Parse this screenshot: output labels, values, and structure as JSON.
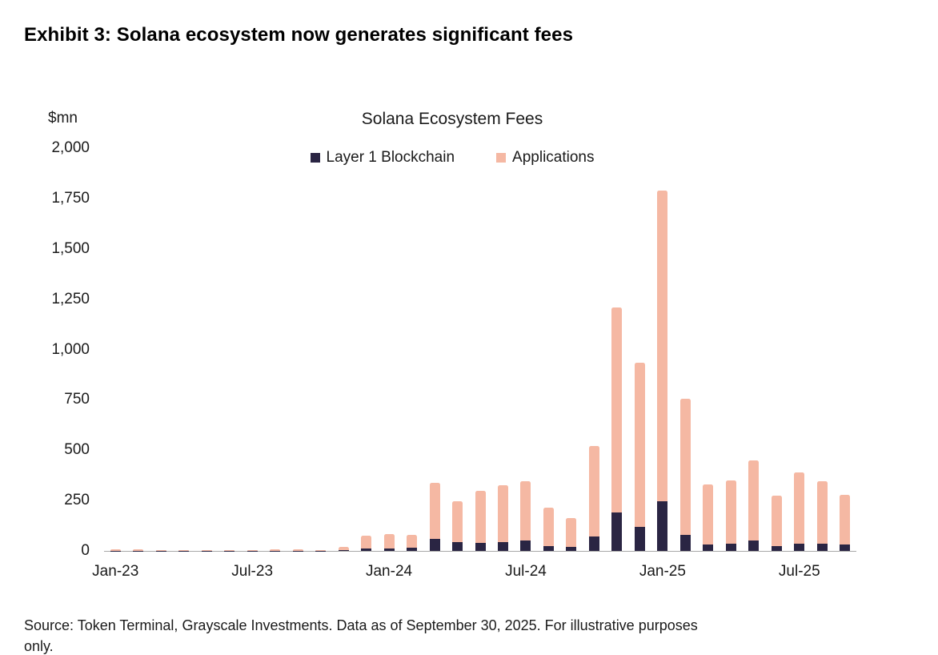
{
  "title": "Exhibit 3: Solana ecosystem now generates significant fees",
  "source": {
    "line1": "Source: Token Terminal, Grayscale Investments. Data as of September 30, 2025. For illustrative purposes",
    "line2": "only."
  },
  "chart_data": {
    "type": "bar",
    "stacked": true,
    "title": "Solana Ecosystem Fees",
    "unit_label": "$mn",
    "xlabel": "",
    "ylabel": "$mn",
    "ylim": [
      0,
      2000
    ],
    "grid": false,
    "legend_position": "top-center",
    "yticks": [
      {
        "value": 0,
        "label": "0"
      },
      {
        "value": 250,
        "label": "250"
      },
      {
        "value": 500,
        "label": "500"
      },
      {
        "value": 750,
        "label": "750"
      },
      {
        "value": 1000,
        "label": "1,000"
      },
      {
        "value": 1250,
        "label": "1,250"
      },
      {
        "value": 1500,
        "label": "1,500"
      },
      {
        "value": 1750,
        "label": "1,750"
      },
      {
        "value": 2000,
        "label": "2,000"
      }
    ],
    "categories": [
      "Jan-23",
      "Feb-23",
      "Mar-23",
      "Apr-23",
      "May-23",
      "Jun-23",
      "Jul-23",
      "Aug-23",
      "Sep-23",
      "Oct-23",
      "Nov-23",
      "Dec-23",
      "Jan-24",
      "Feb-24",
      "Mar-24",
      "Apr-24",
      "May-24",
      "Jun-24",
      "Jul-24",
      "Aug-24",
      "Sep-24",
      "Oct-24",
      "Nov-24",
      "Dec-24",
      "Jan-25",
      "Feb-25",
      "Mar-25",
      "Apr-25",
      "May-25",
      "Jun-25",
      "Jul-25",
      "Aug-25",
      "Sep-25"
    ],
    "xticks": [
      {
        "index": 0,
        "label": "Jan-23"
      },
      {
        "index": 6,
        "label": "Jul-23"
      },
      {
        "index": 12,
        "label": "Jan-24"
      },
      {
        "index": 18,
        "label": "Jul-24"
      },
      {
        "index": 24,
        "label": "Jan-25"
      },
      {
        "index": 30,
        "label": "Jul-25"
      }
    ],
    "series": [
      {
        "name": "Layer 1 Blockchain",
        "color": "#2a2543",
        "values": [
          2,
          2,
          1,
          1,
          1,
          1,
          1,
          2,
          2,
          2,
          3,
          12,
          12,
          15,
          60,
          45,
          40,
          45,
          50,
          25,
          20,
          70,
          190,
          120,
          245,
          80,
          30,
          35,
          50,
          25,
          35,
          35,
          30
        ]
      },
      {
        "name": "Applications",
        "color": "#f5b8a3",
        "values": [
          8,
          6,
          4,
          3,
          4,
          3,
          4,
          7,
          6,
          4,
          15,
          63,
          73,
          65,
          280,
          200,
          260,
          280,
          295,
          190,
          145,
          450,
          1020,
          815,
          1545,
          675,
          300,
          315,
          400,
          250,
          355,
          310,
          250
        ]
      }
    ]
  }
}
